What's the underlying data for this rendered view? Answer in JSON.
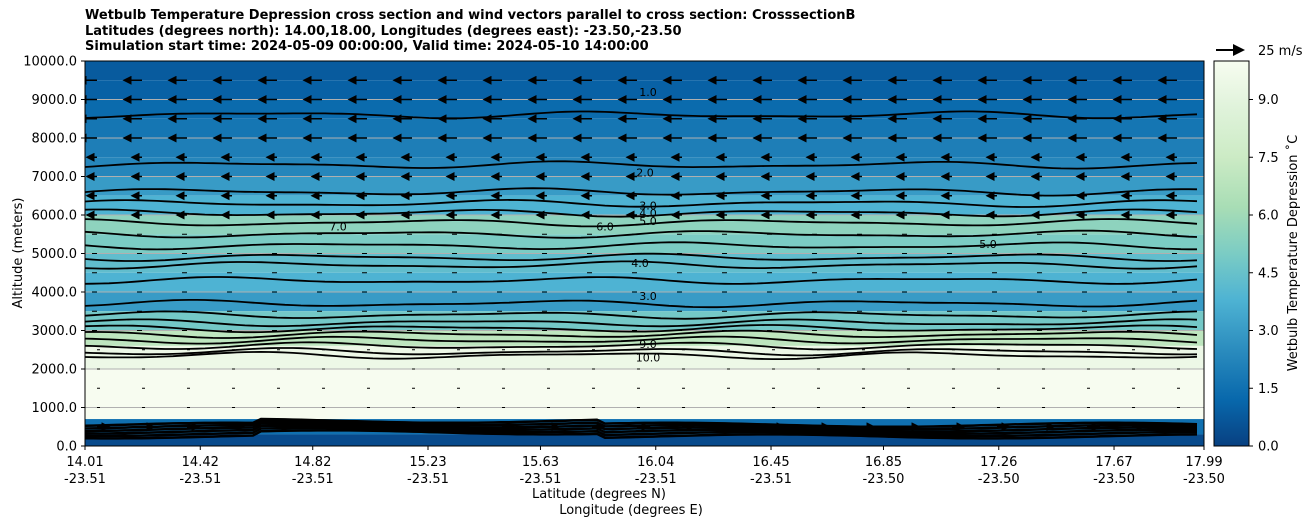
{
  "chart_data": {
    "type": "heatmap",
    "title": [
      "Wetbulb Temperature Depression cross section and wind vectors parallel to cross section: CrosssectionB",
      "Latitudes (degrees north): 14.00,18.00, Longitudes (degrees east): -23.50,-23.50",
      "Simulation start time: 2024-05-09 00:00:00, Valid time: 2024-05-10 14:00:00"
    ],
    "xlabel": "Latitude (degrees N)",
    "xlabel2": "Longitude (degrees E)",
    "ylabel": "Altitude (meters)",
    "colorbar_label": "Wetbulb Temperature Depression ˚C",
    "quiver_key": "25 m/s",
    "ylim": [
      0,
      10000
    ],
    "y_ticks": [
      "0.0",
      "1000.0",
      "2000.0",
      "3000.0",
      "4000.0",
      "5000.0",
      "6000.0",
      "7000.0",
      "8000.0",
      "9000.0",
      "10000.0"
    ],
    "x_ticks": [
      {
        "lat": "14.01",
        "lon": "-23.51"
      },
      {
        "lat": "14.42",
        "lon": "-23.51"
      },
      {
        "lat": "14.82",
        "lon": "-23.51"
      },
      {
        "lat": "15.23",
        "lon": "-23.51"
      },
      {
        "lat": "15.63",
        "lon": "-23.51"
      },
      {
        "lat": "16.04",
        "lon": "-23.51"
      },
      {
        "lat": "16.45",
        "lon": "-23.51"
      },
      {
        "lat": "16.85",
        "lon": "-23.50"
      },
      {
        "lat": "17.26",
        "lon": "-23.50"
      },
      {
        "lat": "17.67",
        "lon": "-23.50"
      },
      {
        "lat": "17.99",
        "lon": "-23.50"
      }
    ],
    "colorbar_ticks": [
      "0.0",
      "1.5",
      "3.0",
      "4.5",
      "6.0",
      "7.5",
      "9.0"
    ],
    "colorbar_range": [
      0,
      10
    ],
    "grid": "horizontal",
    "layers": [
      {
        "alt_bottom": 9500,
        "alt_top": 10000,
        "value": 0.8
      },
      {
        "alt_bottom": 9000,
        "alt_top": 9500,
        "value": 1.0
      },
      {
        "alt_bottom": 8500,
        "alt_top": 9000,
        "value": 1.3
      },
      {
        "alt_bottom": 8000,
        "alt_top": 8500,
        "value": 1.7
      },
      {
        "alt_bottom": 7500,
        "alt_top": 8000,
        "value": 2.0
      },
      {
        "alt_bottom": 7000,
        "alt_top": 7500,
        "value": 2.3
      },
      {
        "alt_bottom": 6500,
        "alt_top": 7000,
        "value": 3.0
      },
      {
        "alt_bottom": 6000,
        "alt_top": 6500,
        "value": 3.8
      },
      {
        "alt_bottom": 5500,
        "alt_top": 6000,
        "value": 5.5
      },
      {
        "alt_bottom": 5000,
        "alt_top": 5500,
        "value": 5.0
      },
      {
        "alt_bottom": 4500,
        "alt_top": 5000,
        "value": 4.3
      },
      {
        "alt_bottom": 4000,
        "alt_top": 4500,
        "value": 3.8
      },
      {
        "alt_bottom": 3500,
        "alt_top": 4000,
        "value": 3.0
      },
      {
        "alt_bottom": 3000,
        "alt_top": 3500,
        "value": 4.8
      },
      {
        "alt_bottom": 2600,
        "alt_top": 3000,
        "value": 7.0
      },
      {
        "alt_bottom": 2000,
        "alt_top": 2600,
        "value": 9.5
      },
      {
        "alt_bottom": 700,
        "alt_top": 2000,
        "value": 10.0
      },
      {
        "alt_bottom": 300,
        "alt_top": 700,
        "value": 1.5
      },
      {
        "alt_bottom": 0,
        "alt_top": 300,
        "value": 0.3
      }
    ],
    "contour_levels": [
      "1.0",
      "2.0",
      "3.0",
      "4.0",
      "5.0",
      "6.0",
      "7.0",
      "8.0",
      "9.0",
      "10.0"
    ]
  }
}
